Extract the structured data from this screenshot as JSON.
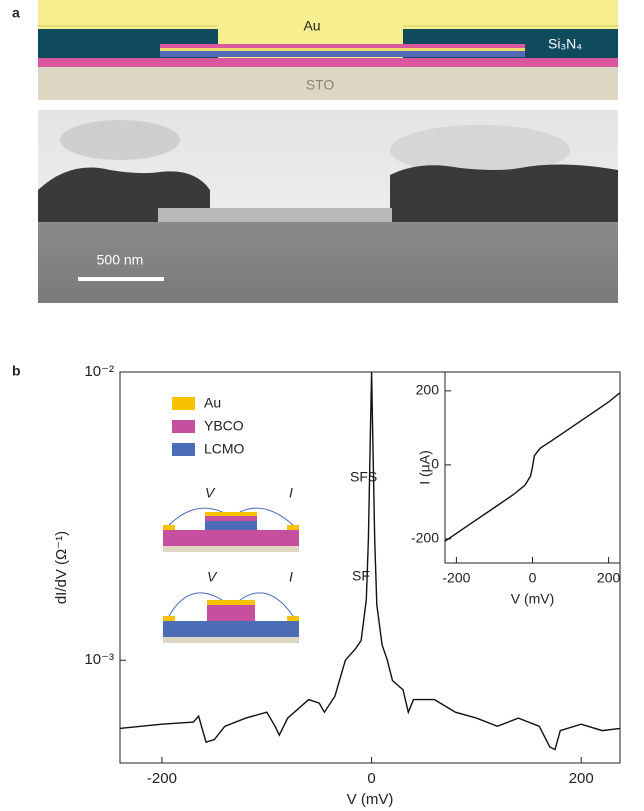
{
  "panel_a": {
    "label": "a",
    "schematic": {
      "au": "Au",
      "si3n4": "Si₃N₄",
      "sto": "STO"
    },
    "scale_bar": "500 nm"
  },
  "panel_b": {
    "label": "b",
    "legend": [
      {
        "name": "Au",
        "color": "#f7c200"
      },
      {
        "name": "YBCO",
        "color": "#c64f9f"
      },
      {
        "name": "LCMO",
        "color": "#4b6db5"
      }
    ],
    "schematics": [
      {
        "label": "SFS",
        "v": "V",
        "i": "I"
      },
      {
        "label": "SF",
        "v": "V",
        "i": "I"
      }
    ]
  },
  "chart_data": [
    {
      "type": "line",
      "xlabel": "V (mV)",
      "ylabel": "dI/dV (Ω⁻¹)",
      "log_y": true,
      "xlim": [
        -240,
        237
      ],
      "ylim": [
        0.00044,
        0.01
      ],
      "xticks": [
        -200,
        0,
        200
      ],
      "yticks": [
        {
          "value": 0.01,
          "label": "10⁻²"
        },
        {
          "value": 0.001,
          "label": "10⁻³"
        }
      ],
      "x": [
        -240,
        -200,
        -170,
        -165,
        -158,
        -150,
        -140,
        -120,
        -100,
        -92,
        -88,
        -80,
        -60,
        -50,
        -45,
        -35,
        -25,
        -15,
        -10,
        -5,
        -3,
        -1,
        0,
        1,
        3,
        5,
        10,
        15,
        20,
        30,
        35,
        40,
        60,
        80,
        100,
        120,
        140,
        160,
        170,
        175,
        180,
        200,
        220,
        237
      ],
      "series": [
        {
          "color": "#111111",
          "values": [
            0.00058,
            0.0006,
            0.00061,
            0.00064,
            0.00052,
            0.00053,
            0.00059,
            0.00063,
            0.00066,
            0.00059,
            0.00055,
            0.00063,
            0.00073,
            0.00071,
            0.00066,
            0.00075,
            0.001,
            0.0011,
            0.00117,
            0.00162,
            0.00263,
            0.0064,
            0.01,
            0.0064,
            0.00263,
            0.00156,
            0.00113,
            0.001,
            0.00085,
            0.00079,
            0.00066,
            0.00073,
            0.00073,
            0.00066,
            0.00063,
            0.00059,
            0.00063,
            0.00059,
            0.0005,
            0.00049,
            0.00057,
            0.0006,
            0.00057,
            0.00058
          ]
        }
      ]
    },
    {
      "type": "line",
      "xlabel": "V (mV)",
      "ylabel": "I (µA)",
      "xlim": [
        -230,
        230
      ],
      "ylim": [
        -265,
        251
      ],
      "xticks": [
        -200,
        0,
        200
      ],
      "yticks": [
        -200,
        0,
        200
      ],
      "x": [
        -230,
        -150,
        -100,
        -50,
        -20,
        -5,
        0,
        5,
        20,
        50,
        100,
        150,
        200,
        230
      ],
      "series": [
        {
          "color": "#111111",
          "values": [
            -206,
            -150,
            -115,
            -80,
            -55,
            -30,
            -5,
            25,
            45,
            65,
            100,
            135,
            170,
            195
          ]
        }
      ]
    }
  ]
}
